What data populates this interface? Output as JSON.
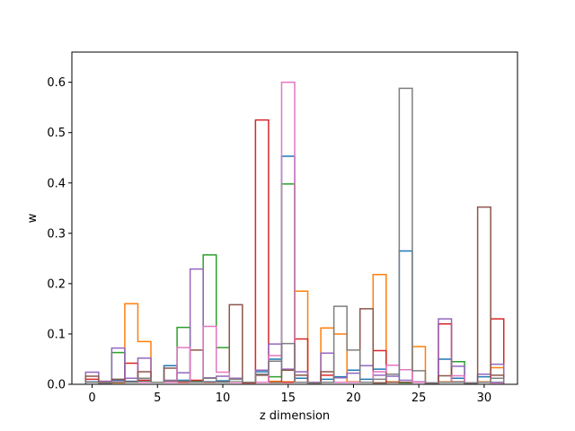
{
  "chart_data": {
    "type": "step",
    "title": "",
    "xlabel": "z dimension",
    "ylabel": "w",
    "xlim": [
      -1.55,
      32.55
    ],
    "ylim": [
      0,
      0.66
    ],
    "xticks": [
      0,
      5,
      10,
      15,
      20,
      25,
      30
    ],
    "yticks": [
      0.0,
      0.1,
      0.2,
      0.3,
      0.4,
      0.5,
      0.6
    ],
    "ytick_labels": [
      "0.0",
      "0.1",
      "0.2",
      "0.3",
      "0.4",
      "0.5",
      "0.6"
    ],
    "grid": false,
    "legend": "none",
    "x": [
      0,
      1,
      2,
      3,
      4,
      5,
      6,
      7,
      8,
      9,
      10,
      11,
      12,
      13,
      14,
      15,
      16,
      17,
      18,
      19,
      20,
      21,
      22,
      23,
      24,
      25,
      26,
      27,
      28,
      29,
      30,
      31
    ],
    "series": [
      {
        "color": "#1f77b4",
        "values": [
          0.005,
          0.003,
          0.008,
          0.006,
          0.008,
          0.004,
          0.037,
          0.008,
          0.006,
          0.005,
          0.007,
          0.005,
          0.004,
          0.025,
          0.05,
          0.453,
          0.012,
          0.004,
          0.01,
          0.015,
          0.028,
          0.01,
          0.03,
          0.005,
          0.265,
          0.004,
          0.003,
          0.05,
          0.012,
          0.003,
          0.015,
          0.004
        ]
      },
      {
        "color": "#ff7f0e",
        "values": [
          0.004,
          0.006,
          0.003,
          0.16,
          0.085,
          0.004,
          0.005,
          0.004,
          0.005,
          0.004,
          0.004,
          0.004,
          0.003,
          0.004,
          0.006,
          0.005,
          0.185,
          0.004,
          0.112,
          0.1,
          0.005,
          0.004,
          0.218,
          0.005,
          0.004,
          0.075,
          0.003,
          0.005,
          0.004,
          0.003,
          0.005,
          0.033
        ]
      },
      {
        "color": "#2ca02c",
        "values": [
          0.004,
          0.003,
          0.063,
          0.005,
          0.005,
          0.004,
          0.005,
          0.113,
          0.005,
          0.257,
          0.073,
          0.005,
          0.004,
          0.02,
          0.015,
          0.398,
          0.004,
          0.004,
          0.004,
          0.004,
          0.004,
          0.004,
          0.003,
          0.004,
          0.003,
          0.004,
          0.003,
          0.004,
          0.045,
          0.003,
          0.004,
          0.003
        ]
      },
      {
        "color": "#d62728",
        "values": [
          0.01,
          0.003,
          0.004,
          0.042,
          0.008,
          0.004,
          0.005,
          0.004,
          0.008,
          0.004,
          0.005,
          0.004,
          0.003,
          0.525,
          0.004,
          0.004,
          0.09,
          0.003,
          0.018,
          0.004,
          0.004,
          0.004,
          0.067,
          0.004,
          0.004,
          0.004,
          0.003,
          0.12,
          0.004,
          0.003,
          0.004,
          0.13
        ]
      },
      {
        "color": "#9467bd",
        "values": [
          0.024,
          0.006,
          0.072,
          0.012,
          0.052,
          0.004,
          0.008,
          0.023,
          0.229,
          0.013,
          0.016,
          0.012,
          0.004,
          0.028,
          0.08,
          0.03,
          0.025,
          0.004,
          0.062,
          0.013,
          0.022,
          0.037,
          0.018,
          0.016,
          0.008,
          0.005,
          0.003,
          0.13,
          0.036,
          0.003,
          0.02,
          0.04
        ]
      },
      {
        "color": "#8c564b",
        "values": [
          0.016,
          0.004,
          0.01,
          0.005,
          0.025,
          0.004,
          0.032,
          0.006,
          0.068,
          0.004,
          0.005,
          0.158,
          0.004,
          0.018,
          0.004,
          0.028,
          0.018,
          0.003,
          0.025,
          0.004,
          0.004,
          0.15,
          0.003,
          0.004,
          0.004,
          0.004,
          0.003,
          0.017,
          0.005,
          0.003,
          0.352,
          0.018
        ]
      },
      {
        "color": "#e377c2",
        "values": [
          0.004,
          0.003,
          0.005,
          0.004,
          0.004,
          0.004,
          0.004,
          0.073,
          0.004,
          0.115,
          0.024,
          0.004,
          0.004,
          0.004,
          0.057,
          0.6,
          0.004,
          0.003,
          0.004,
          0.004,
          0.004,
          0.004,
          0.025,
          0.038,
          0.029,
          0.004,
          0.003,
          0.004,
          0.017,
          0.003,
          0.004,
          0.003
        ]
      },
      {
        "color": "#7f7f7f",
        "values": [
          0.004,
          0.003,
          0.004,
          0.004,
          0.012,
          0.004,
          0.007,
          0.006,
          0.004,
          0.012,
          0.004,
          0.01,
          0.004,
          0.02,
          0.046,
          0.081,
          0.004,
          0.003,
          0.004,
          0.155,
          0.068,
          0.004,
          0.01,
          0.02,
          0.588,
          0.027,
          0.003,
          0.004,
          0.004,
          0.003,
          0.004,
          0.012
        ]
      }
    ]
  }
}
